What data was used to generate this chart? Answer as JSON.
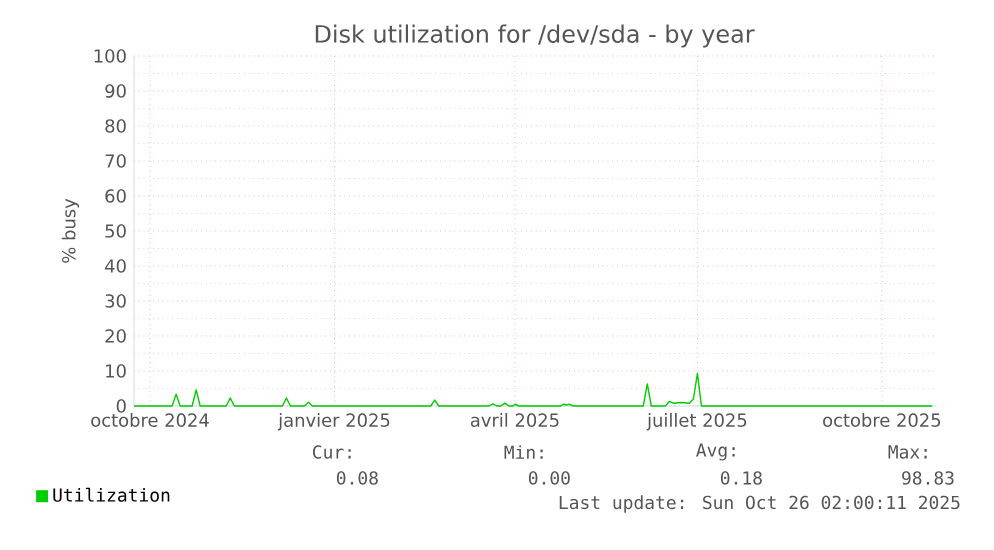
{
  "chart_data": {
    "type": "line",
    "title": "Disk utilization for /dev/sda - by year",
    "ylabel": "% busy",
    "xlim": [
      "2024-09-23",
      "2025-10-28"
    ],
    "ylim": [
      0,
      100
    ],
    "yticks": [
      0,
      10,
      20,
      30,
      40,
      50,
      60,
      70,
      80,
      90,
      100
    ],
    "xticks": [
      {
        "value": "2024-10-01",
        "label": "octobre 2024"
      },
      {
        "value": "2025-01-01",
        "label": "janvier 2025"
      },
      {
        "value": "2025-04-01",
        "label": "avril 2025"
      },
      {
        "value": "2025-07-01",
        "label": "juillet 2025"
      },
      {
        "value": "2025-10-01",
        "label": "octobre 2025"
      }
    ],
    "grid": true,
    "legend": "bottom left",
    "series": [
      {
        "name": "Utilization",
        "color": "#00cc00",
        "x": [
          "2024-09-23",
          "2024-10-12",
          "2024-10-14",
          "2024-10-16",
          "2024-10-22",
          "2024-10-24",
          "2024-10-26",
          "2024-11-08",
          "2024-11-10",
          "2024-11-12",
          "2024-12-06",
          "2024-12-08",
          "2024-12-10",
          "2024-12-17",
          "2024-12-19",
          "2024-12-21",
          "2025-02-18",
          "2025-02-20",
          "2025-02-22",
          "2025-03-19",
          "2025-03-21",
          "2025-03-23",
          "2025-03-25",
          "2025-03-27",
          "2025-03-29",
          "2025-03-31",
          "2025-04-01",
          "2025-04-03",
          "2025-04-24",
          "2025-04-25",
          "2025-04-27",
          "2025-04-28",
          "2025-04-30",
          "2025-06-04",
          "2025-06-06",
          "2025-06-08",
          "2025-06-15",
          "2025-06-17",
          "2025-06-19",
          "2025-06-23",
          "2025-06-27",
          "2025-06-29",
          "2025-07-01",
          "2025-07-03",
          "2025-10-26"
        ],
        "values": [
          0,
          0,
          3.4,
          0,
          0,
          4.6,
          0,
          0,
          2.3,
          0,
          0,
          2.3,
          0,
          0,
          1.1,
          0,
          0,
          1.7,
          0,
          0,
          0.6,
          0,
          0,
          0.8,
          0,
          0,
          0.5,
          0,
          0,
          0.5,
          0.3,
          0.5,
          0,
          0,
          6.3,
          0,
          0,
          1.3,
          0.8,
          1.0,
          0.8,
          2.0,
          9.3,
          0,
          0
        ]
      }
    ],
    "annotations": [
      "Cur:",
      "Min:",
      "Avg:",
      "Max:",
      "0.08",
      "0.00",
      "0.18",
      "98.83",
      "Last update: Sun Oct 26 02:00:11 2025"
    ]
  }
}
